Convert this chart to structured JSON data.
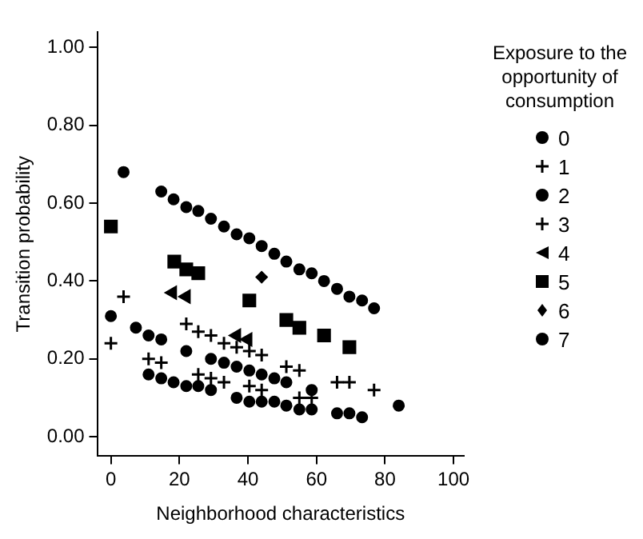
{
  "chart_data": {
    "type": "scatter",
    "xlabel": "Neighborhood characteristics",
    "ylabel": "Transition probability",
    "legend_title": "Exposure to the opportunity of consumption",
    "legend": "right",
    "grid": false,
    "xlim": [
      -4,
      103
    ],
    "ylim": [
      -0.05,
      1.04
    ],
    "xticks": [
      0,
      20,
      40,
      60,
      80,
      100
    ],
    "yticks": [
      {
        "value": 0,
        "label": "0.00"
      },
      {
        "value": 0.2,
        "label": "0.20"
      },
      {
        "value": 0.4,
        "label": "0.40"
      },
      {
        "value": 0.6,
        "label": "0.60"
      },
      {
        "value": 0.8,
        "label": "0.80"
      },
      {
        "value": 1,
        "label": "1.00"
      }
    ],
    "series": [
      {
        "name": "0",
        "color": "#000000",
        "marker": "circle",
        "x": [
          11,
          14.7,
          18.3,
          22,
          25.5,
          29.2,
          36.7,
          40.4,
          44,
          47.7,
          51.2,
          55,
          58.6,
          66,
          69.6,
          73.3
        ],
        "values": [
          0.16,
          0.15,
          0.14,
          0.13,
          0.13,
          0.12,
          0.1,
          0.09,
          0.09,
          0.09,
          0.08,
          0.07,
          0.07,
          0.06,
          0.06,
          0.05
        ]
      },
      {
        "name": "1",
        "color": "#000000",
        "marker": "cross",
        "x": [
          0,
          11,
          14.7,
          25.5,
          29.2,
          33,
          40.4,
          44,
          55,
          58.6
        ],
        "values": [
          0.24,
          0.2,
          0.19,
          0.16,
          0.15,
          0.14,
          0.13,
          0.12,
          0.1,
          0.1
        ]
      },
      {
        "name": "2",
        "color": "#000000",
        "marker": "circle",
        "x": [
          0,
          7.3,
          11,
          14.7,
          22,
          29.2,
          33,
          36.7,
          40.4,
          44,
          47.7,
          51.2,
          58.6,
          84
        ],
        "values": [
          0.31,
          0.28,
          0.26,
          0.25,
          0.22,
          0.2,
          0.19,
          0.18,
          0.17,
          0.16,
          0.15,
          0.14,
          0.12,
          0.08
        ]
      },
      {
        "name": "3",
        "color": "#000000",
        "marker": "cross",
        "x": [
          3.7,
          22,
          25.5,
          29.2,
          33,
          36.7,
          40.4,
          44,
          51.2,
          55,
          66,
          69.6,
          76.8
        ],
        "values": [
          0.36,
          0.29,
          0.27,
          0.26,
          0.24,
          0.23,
          0.22,
          0.21,
          0.18,
          0.17,
          0.14,
          0.14,
          0.12
        ]
      },
      {
        "name": "4",
        "color": "#000000",
        "marker": "triangle",
        "x": [
          18,
          22,
          36.7,
          40
        ],
        "values": [
          0.37,
          0.36,
          0.26,
          0.25
        ]
      },
      {
        "name": "5",
        "color": "#000000",
        "marker": "square",
        "x": [
          0,
          18.5,
          22,
          25.5,
          40.4,
          51.2,
          55,
          62.2,
          69.6
        ],
        "values": [
          0.54,
          0.45,
          0.43,
          0.42,
          0.35,
          0.3,
          0.28,
          0.26,
          0.23
        ]
      },
      {
        "name": "6",
        "color": "#000000",
        "marker": "diamond",
        "x": [
          44
        ],
        "values": [
          0.41
        ]
      },
      {
        "name": "7",
        "color": "#000000",
        "marker": "circle",
        "x": [
          3.7,
          14.7,
          18.3,
          22,
          25.5,
          29.2,
          33,
          36.7,
          40.4,
          44,
          47.7,
          51.2,
          55,
          58.6,
          62.2,
          66,
          69.6,
          73.3,
          76.8
        ],
        "values": [
          0.68,
          0.63,
          0.61,
          0.59,
          0.58,
          0.56,
          0.54,
          0.52,
          0.51,
          0.49,
          0.47,
          0.45,
          0.43,
          0.42,
          0.4,
          0.38,
          0.36,
          0.35,
          0.33
        ]
      }
    ]
  }
}
